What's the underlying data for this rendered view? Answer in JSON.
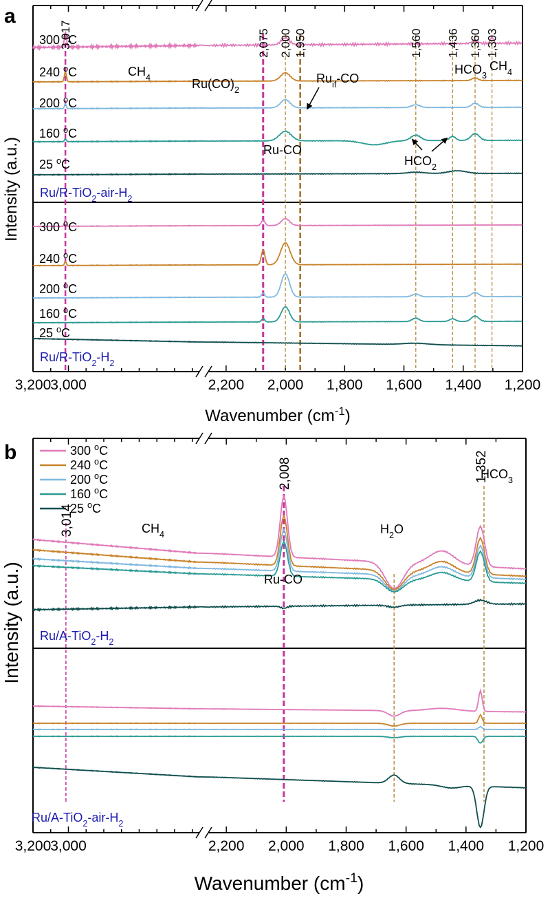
{
  "chart_data": [
    {
      "panel": "a",
      "type": "line",
      "xlabel": "Wavenumber (cm",
      "xlabel_sup": "-1",
      "xlabel_tail": ")",
      "ylabel": "Intensity (a.u.)",
      "x_axis": {
        "left_segment": [
          3200,
          2260
        ],
        "right_segment": [
          2260,
          1200
        ],
        "left_ticks": [
          "3,200",
          "3,000"
        ],
        "right_ticks": [
          "2,200",
          "2,000",
          "1,800",
          "1,600",
          "1,400",
          "1,200"
        ]
      },
      "subplots": [
        {
          "sample": "Ru/R-TiO",
          "sample_sub": "2",
          "sample_tail": "-air-H",
          "sample_sub2": "2",
          "series": [
            {
              "name": "300 °C",
              "label": "300 ",
              "unit": "C",
              "color": "#e079b9"
            },
            {
              "name": "240 °C",
              "label": "240 ",
              "unit": "C",
              "color": "#c8822a"
            },
            {
              "name": "200 °C",
              "label": "200 ",
              "unit": "C",
              "color": "#7fb8df"
            },
            {
              "name": "160 °C",
              "label": "160 ",
              "unit": "C",
              "color": "#2a9a93"
            },
            {
              "name": "25 °C",
              "label": "25 ",
              "unit": "C",
              "color": "#0f4d4d"
            }
          ]
        },
        {
          "sample": "Ru/R-TiO",
          "sample_sub": "2",
          "sample_tail": "-H",
          "sample_sub2": "2",
          "series": [
            {
              "name": "300 °C",
              "label": "300 ",
              "unit": "C",
              "color": "#e079b9"
            },
            {
              "name": "240 °C",
              "label": "240 ",
              "unit": "C",
              "color": "#c8822a"
            },
            {
              "name": "200 °C",
              "label": "200 ",
              "unit": "C",
              "color": "#7fb8df"
            },
            {
              "name": "160 °C",
              "label": "160 ",
              "unit": "C",
              "color": "#2a9a93"
            },
            {
              "name": "25 °C",
              "label": "25 ",
              "unit": "C",
              "color": "#0f4d4d"
            }
          ]
        }
      ],
      "peaks": [
        "3,017",
        "2,075",
        "2,000",
        "1,950",
        "1,560",
        "1,436",
        "1,360",
        "1,303"
      ],
      "annotations": {
        "ch4": "CH",
        "ch4_sub": "4",
        "ru_co2": "Ru(CO)",
        "ru_co2_sub": "2",
        "ru_if": "Ru",
        "ru_if_sub": "if",
        "ru_if_tail": "-CO",
        "hco3": "HCO",
        "hco3_sub": "3",
        "ch4_b": "CH",
        "ch4_b_sub": "4",
        "ru_co": "Ru-CO",
        "hco2": "HCO",
        "hco2_sub": "2"
      }
    },
    {
      "panel": "b",
      "type": "line",
      "xlabel": "Wavenumber (cm",
      "xlabel_sup": "-1",
      "xlabel_tail": ")",
      "ylabel": "Intensity (a.u.)",
      "x_axis": {
        "left_segment": [
          3200,
          2260
        ],
        "right_segment": [
          2260,
          1200
        ],
        "left_ticks": [
          "3,200",
          "3,000"
        ],
        "right_ticks": [
          "2,200",
          "2,000",
          "1,800",
          "1,600",
          "1,400",
          "1,200"
        ]
      },
      "legend": [
        {
          "label": "300 ",
          "unit": "C",
          "color": "#e079b9"
        },
        {
          "label": "240 ",
          "unit": "C",
          "color": "#c8822a"
        },
        {
          "label": "200 ",
          "unit": "C",
          "color": "#7fb8df"
        },
        {
          "label": "160 ",
          "unit": "C",
          "color": "#2a9a93"
        },
        {
          "label": "25 ",
          "unit": "C",
          "color": "#0f4d4d"
        }
      ],
      "subplots": [
        {
          "sample": "Ru/A-TiO",
          "sample_sub": "2",
          "sample_tail": "-H",
          "sample_sub2": "2"
        },
        {
          "sample": "Ru/A-TiO",
          "sample_sub": "2",
          "sample_tail": "-air-H",
          "sample_sub2": "2"
        }
      ],
      "peaks": [
        "3,014",
        "2,008",
        "1,352"
      ],
      "annotations": {
        "ch4": "CH",
        "ch4_sub": "4",
        "ru_co": "Ru-CO",
        "h2o": "H",
        "h2o_sub": "2",
        "h2o_tail": "O",
        "hco3": "HCO",
        "hco3_sub": "3"
      }
    }
  ],
  "panel_labels": {
    "a": "a",
    "b": "b"
  },
  "degree_symbol": "o"
}
